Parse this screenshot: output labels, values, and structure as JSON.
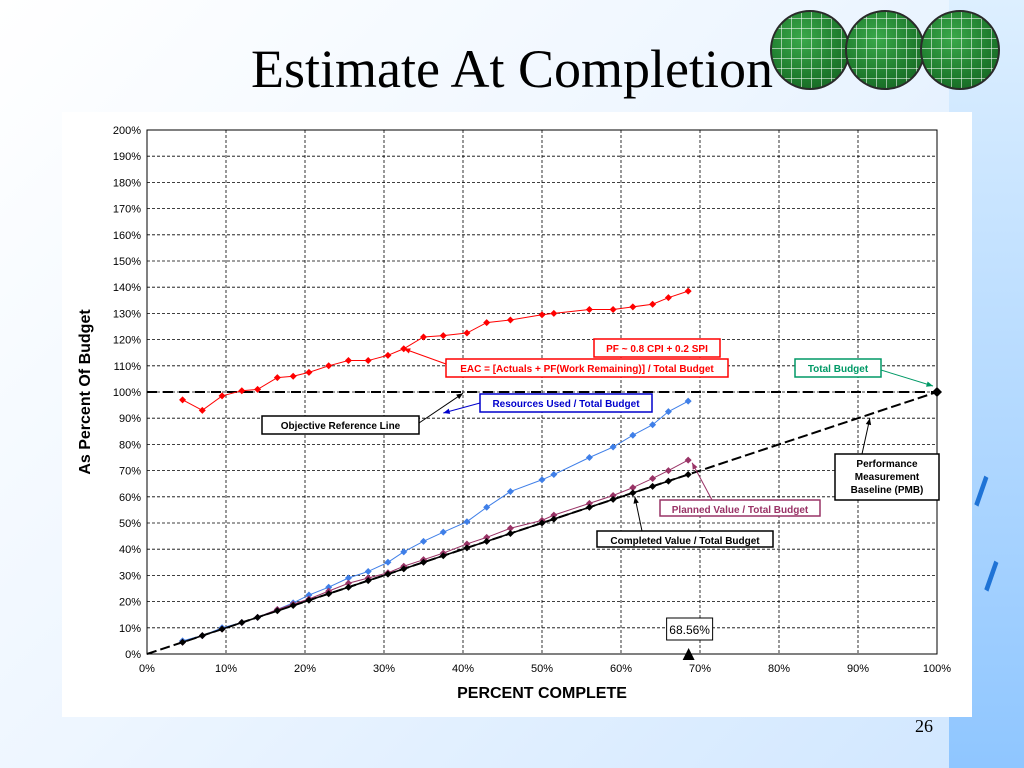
{
  "slide": {
    "title": "Estimate At Completion",
    "page_number": "26"
  },
  "colors": {
    "eac": "#ff0000",
    "resources": "#3f7fe8",
    "planned": "#993366",
    "completed": "#000000",
    "baseline": "#000000"
  },
  "chart_data": {
    "type": "line",
    "title": "",
    "xlabel": "PERCENT COMPLETE",
    "ylabel": "As Percent Of Budget",
    "xlim": [
      0,
      100
    ],
    "ylim": [
      0,
      200
    ],
    "x_ticks": [
      "0%",
      "10%",
      "20%",
      "30%",
      "40%",
      "50%",
      "60%",
      "70%",
      "80%",
      "90%",
      "100%"
    ],
    "y_ticks": [
      "0%",
      "10%",
      "20%",
      "30%",
      "40%",
      "50%",
      "60%",
      "70%",
      "80%",
      "90%",
      "100%",
      "110%",
      "120%",
      "130%",
      "140%",
      "150%",
      "160%",
      "170%",
      "180%",
      "190%",
      "200%"
    ],
    "grid": true,
    "series": [
      {
        "key": "eac",
        "x": [
          4.5,
          7,
          9.5,
          12,
          14,
          16.5,
          18.5,
          20.5,
          23,
          25.5,
          28,
          30.5,
          32.5,
          35,
          37.5,
          40.5,
          43,
          46,
          50,
          51.5,
          56,
          59,
          61.5,
          64,
          66,
          68.5
        ],
        "y": [
          97,
          93,
          98.5,
          100.5,
          101,
          105.5,
          106,
          107.5,
          110,
          112,
          112,
          114,
          116.5,
          121,
          121.5,
          122.5,
          126.5,
          127.5,
          129.5,
          130,
          131.5,
          131.5,
          132.5,
          133.5,
          136,
          138.5
        ]
      },
      {
        "key": "resources",
        "x": [
          4.5,
          7,
          9.5,
          12,
          14,
          16.5,
          18.5,
          20.5,
          23,
          25.5,
          28,
          30.5,
          32.5,
          35,
          37.5,
          40.5,
          43,
          46,
          50,
          51.5,
          56,
          59,
          61.5,
          64,
          66,
          68.5
        ],
        "y": [
          5,
          7,
          10,
          12,
          14,
          17,
          19.5,
          22.5,
          25.5,
          29,
          31.5,
          35,
          39,
          43,
          46.5,
          50.5,
          56,
          62,
          66.5,
          68.5,
          75,
          79,
          83.5,
          87.5,
          92.5,
          96.5
        ]
      },
      {
        "key": "planned",
        "x": [
          4.5,
          7,
          9.5,
          12,
          14,
          16.5,
          18.5,
          20.5,
          23,
          25.5,
          28,
          30.5,
          32.5,
          35,
          37.5,
          40.5,
          43,
          46,
          50,
          51.5,
          56,
          59,
          61.5,
          64,
          66,
          68.5
        ],
        "y": [
          4.5,
          7,
          9.5,
          12,
          14,
          17,
          19,
          21,
          24,
          27,
          29,
          31,
          33.5,
          36,
          38.5,
          42,
          44.5,
          48,
          51,
          53,
          57.5,
          60.5,
          63.5,
          67,
          70,
          74
        ]
      },
      {
        "key": "completed",
        "x": [
          4.5,
          7,
          9.5,
          12,
          14,
          16.5,
          18.5,
          20.5,
          23,
          25.5,
          28,
          30.5,
          32.5,
          35,
          37.5,
          40.5,
          43,
          46,
          50,
          51.5,
          56,
          59,
          61.5,
          64,
          66,
          68.5
        ],
        "y": [
          4.5,
          7,
          9.5,
          12,
          14,
          16.5,
          18.5,
          20.5,
          23,
          25.5,
          28,
          30.5,
          32.5,
          35,
          37.5,
          40.5,
          43,
          46,
          50,
          51.5,
          56,
          59,
          61.5,
          64,
          66,
          68.5
        ]
      }
    ],
    "baseline": {
      "x": [
        0,
        100
      ],
      "y": [
        0,
        100
      ]
    },
    "reference_line_y": 100,
    "marker_x": 68.56,
    "marker_label": "68.56%",
    "annotations": [
      {
        "key": "pf",
        "text": "PF ~ 0.8 CPI + 0.2 SPI"
      },
      {
        "key": "eac",
        "text": "EAC = [Actuals + PF(Work Remaining)] / Total Budget"
      },
      {
        "key": "total",
        "text": "Total Budget"
      },
      {
        "key": "resources",
        "text": "Resources Used / Total Budget"
      },
      {
        "key": "objective",
        "text": "Objective Reference Line"
      },
      {
        "key": "pmb1",
        "text": "Performance"
      },
      {
        "key": "pmb2",
        "text": "Measurement"
      },
      {
        "key": "pmb3",
        "text": "Baseline (PMB)"
      },
      {
        "key": "planned",
        "text": "Planned Value / Total Budget"
      },
      {
        "key": "completed",
        "text": "Completed Value / Total Budget"
      }
    ]
  }
}
